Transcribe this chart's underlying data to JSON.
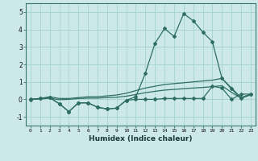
{
  "xlabel": "Humidex (Indice chaleur)",
  "x_values": [
    0,
    1,
    2,
    3,
    4,
    5,
    6,
    7,
    8,
    9,
    10,
    11,
    12,
    13,
    14,
    15,
    16,
    17,
    18,
    19,
    20,
    21,
    22,
    23
  ],
  "line_spike": [
    0.0,
    0.05,
    0.1,
    -0.25,
    -0.7,
    -0.2,
    -0.2,
    -0.45,
    -0.55,
    -0.5,
    -0.05,
    0.15,
    1.5,
    3.2,
    4.05,
    3.6,
    4.9,
    4.5,
    3.85,
    3.3,
    1.2,
    0.6,
    0.05,
    0.3
  ],
  "line_upper": [
    0.0,
    0.05,
    0.15,
    0.05,
    0.05,
    0.1,
    0.15,
    0.15,
    0.2,
    0.25,
    0.35,
    0.5,
    0.65,
    0.75,
    0.85,
    0.9,
    0.95,
    1.0,
    1.05,
    1.1,
    1.2,
    0.65,
    0.1,
    0.3
  ],
  "line_mid": [
    0.0,
    0.02,
    0.07,
    -0.02,
    0.0,
    0.05,
    0.07,
    0.07,
    0.1,
    0.12,
    0.18,
    0.28,
    0.38,
    0.46,
    0.53,
    0.57,
    0.61,
    0.65,
    0.68,
    0.73,
    0.78,
    0.4,
    0.07,
    0.25
  ],
  "line_lower": [
    -0.02,
    0.05,
    0.1,
    -0.25,
    -0.7,
    -0.2,
    -0.2,
    -0.45,
    -0.55,
    -0.5,
    -0.05,
    0.0,
    0.0,
    0.0,
    0.05,
    0.05,
    0.05,
    0.05,
    0.05,
    0.75,
    0.65,
    0.0,
    0.3,
    0.3
  ],
  "line_color": "#2e6e62",
  "bg_color": "#cce8e8",
  "grid_color": "#aad4d4",
  "ylim": [
    -1.5,
    5.5
  ],
  "xlim": [
    -0.5,
    23.5
  ],
  "yticks": [
    -1,
    0,
    1,
    2,
    3,
    4,
    5
  ],
  "xticks": [
    0,
    1,
    2,
    3,
    4,
    5,
    6,
    7,
    8,
    9,
    10,
    11,
    12,
    13,
    14,
    15,
    16,
    17,
    18,
    19,
    20,
    21,
    22,
    23
  ]
}
